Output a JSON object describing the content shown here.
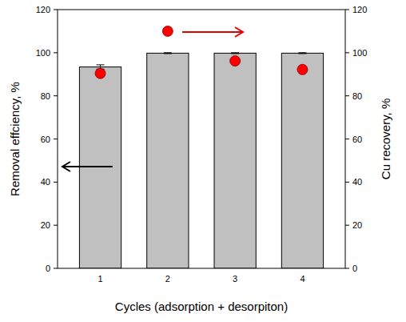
{
  "chart_data": {
    "type": "bar",
    "x_label": "Cycles (adsorption + desorpiton)",
    "y_label": "Removal effciency, %",
    "y2_label": "Cu recovery, %",
    "categories": [
      "1",
      "2",
      "3",
      "4"
    ],
    "series": [
      {
        "type": "bar",
        "color": "#c0c0c0",
        "values": [
          93.4,
          99.8,
          99.8,
          99.8
        ],
        "errors": [
          1.0,
          0.2,
          0.2,
          0.2
        ]
      },
      {
        "type": "scatter",
        "color": "#ff0000",
        "marker": "circle",
        "axis": "y2",
        "values": [
          90.4,
          110,
          96.2,
          92.2
        ]
      }
    ],
    "ylim": [
      0,
      120
    ],
    "yticks": [
      0,
      20,
      40,
      60,
      80,
      100,
      120
    ],
    "y2lim": [
      0,
      120
    ],
    "y2ticks": [
      0,
      20,
      40,
      60,
      80,
      100,
      120
    ],
    "grid": false
  }
}
